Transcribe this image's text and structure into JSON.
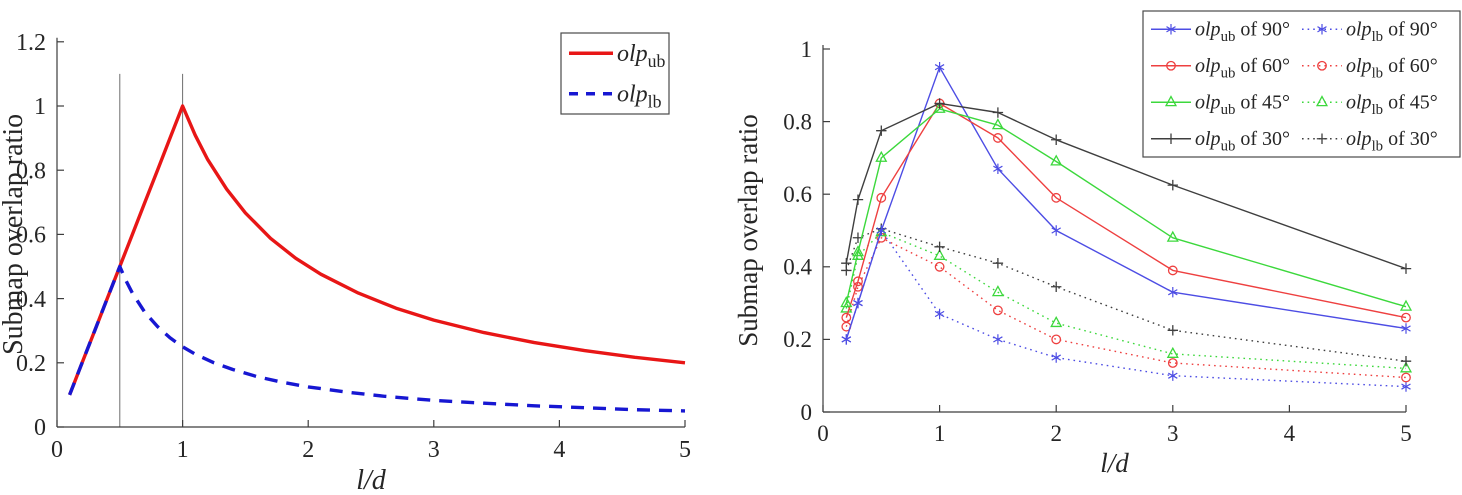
{
  "page": {
    "background": "#ffffff"
  },
  "chart_data": [
    {
      "id": "left",
      "type": "line",
      "title": "",
      "xlabel": "l/d",
      "ylabel": "Submap overlap ratio",
      "xlim": [
        0,
        5
      ],
      "ylim": [
        0,
        1.2
      ],
      "xticks": [
        "0",
        "1",
        "2",
        "3",
        "4",
        "5"
      ],
      "xtick_vals": [
        0,
        1,
        2,
        3,
        4,
        5
      ],
      "yticks": [
        "0",
        "0.2",
        "0.4",
        "0.6",
        "0.8",
        "1",
        "1.2"
      ],
      "ytick_vals": [
        0,
        0.2,
        0.4,
        0.6,
        0.8,
        1,
        1.2
      ],
      "grid": false,
      "legend_position": "top-right",
      "guide_lines": {
        "x": [
          0.5,
          1.0
        ],
        "y_range": [
          0,
          1.1
        ],
        "color": "#6e6e6e"
      },
      "series": [
        {
          "name": "olp_ub",
          "label": {
            "base": "olp",
            "sub": "ub",
            "suffix": ""
          },
          "color": "#e81616",
          "line": "solid",
          "marker": "none",
          "x": [
            0.1,
            0.2,
            0.3,
            0.4,
            0.5,
            0.6,
            0.7,
            0.8,
            0.9,
            1.0,
            1.1,
            1.2,
            1.35,
            1.5,
            1.7,
            1.9,
            2.1,
            2.4,
            2.7,
            3.0,
            3.4,
            3.8,
            4.2,
            4.6,
            5.0
          ],
          "y": [
            0.1,
            0.2,
            0.3,
            0.4,
            0.5,
            0.6,
            0.7,
            0.8,
            0.9,
            1.0,
            0.909,
            0.833,
            0.741,
            0.667,
            0.588,
            0.526,
            0.476,
            0.417,
            0.37,
            0.333,
            0.294,
            0.263,
            0.238,
            0.217,
            0.2
          ]
        },
        {
          "name": "olp_lb",
          "label": {
            "base": "olp",
            "sub": "lb",
            "suffix": ""
          },
          "color": "#1717d2",
          "line": "dashed",
          "marker": "none",
          "x": [
            0.1,
            0.2,
            0.3,
            0.4,
            0.5,
            0.55,
            0.6,
            0.7,
            0.8,
            0.9,
            1.0,
            1.1,
            1.25,
            1.4,
            1.6,
            1.8,
            2.0,
            2.3,
            2.6,
            3.0,
            3.4,
            3.8,
            4.2,
            4.6,
            5.0
          ],
          "y": [
            0.1,
            0.2,
            0.3,
            0.4,
            0.5,
            0.455,
            0.417,
            0.357,
            0.313,
            0.278,
            0.25,
            0.227,
            0.2,
            0.179,
            0.156,
            0.139,
            0.125,
            0.109,
            0.096,
            0.083,
            0.074,
            0.066,
            0.06,
            0.054,
            0.05
          ]
        }
      ]
    },
    {
      "id": "right",
      "type": "line",
      "title": "",
      "xlabel": "l/d",
      "ylabel": "Submap overlap ratio",
      "xlim": [
        0,
        5
      ],
      "ylim": [
        0,
        1.0
      ],
      "xticks": [
        "0",
        "1",
        "2",
        "3",
        "4",
        "5"
      ],
      "xtick_vals": [
        0,
        1,
        2,
        3,
        4,
        5
      ],
      "yticks": [
        "0",
        "0.2",
        "0.4",
        "0.6",
        "0.8",
        "1"
      ],
      "ytick_vals": [
        0,
        0.2,
        0.4,
        0.6,
        0.8,
        1
      ],
      "grid": false,
      "legend_position": "top-right",
      "x_shared": [
        0.2,
        0.3,
        0.5,
        1,
        1.5,
        2,
        3,
        5
      ],
      "series": [
        {
          "name": "olp_ub_90",
          "label": {
            "base": "olp",
            "sub": "ub",
            "suffix": " of 90°"
          },
          "color": "#4d4de4",
          "line": "solid",
          "marker": "asterisk",
          "x": [
            0.2,
            0.3,
            0.5,
            1,
            1.5,
            2,
            3,
            5
          ],
          "y": [
            0.2,
            0.3,
            0.5,
            0.95,
            0.67,
            0.5,
            0.33,
            0.23
          ]
        },
        {
          "name": "olp_lb_90",
          "label": {
            "base": "olp",
            "sub": "lb",
            "suffix": " of 90°"
          },
          "color": "#4d4de4",
          "line": "dotted",
          "marker": "asterisk",
          "x": [
            0.2,
            0.3,
            0.5,
            1,
            1.5,
            2,
            3,
            5
          ],
          "y": [
            0.2,
            0.3,
            0.5,
            0.27,
            0.2,
            0.15,
            0.1,
            0.07
          ]
        },
        {
          "name": "olp_ub_60",
          "label": {
            "base": "olp",
            "sub": "ub",
            "suffix": " of 60°"
          },
          "color": "#ee4040",
          "line": "solid",
          "marker": "circle",
          "x": [
            0.2,
            0.3,
            0.5,
            1,
            1.5,
            2,
            3,
            5
          ],
          "y": [
            0.26,
            0.36,
            0.59,
            0.85,
            0.755,
            0.59,
            0.39,
            0.26
          ]
        },
        {
          "name": "olp_lb_60",
          "label": {
            "base": "olp",
            "sub": "lb",
            "suffix": " of 60°"
          },
          "color": "#ee4040",
          "line": "dotted",
          "marker": "circle",
          "x": [
            0.2,
            0.3,
            0.5,
            1,
            1.5,
            2,
            3,
            5
          ],
          "y": [
            0.235,
            0.345,
            0.48,
            0.4,
            0.28,
            0.2,
            0.135,
            0.095
          ]
        },
        {
          "name": "olp_ub_45",
          "label": {
            "base": "olp",
            "sub": "ub",
            "suffix": " of 45°"
          },
          "color": "#3cd83c",
          "line": "solid",
          "marker": "triangle",
          "x": [
            0.2,
            0.3,
            0.5,
            1,
            1.5,
            2,
            3,
            5
          ],
          "y": [
            0.3,
            0.44,
            0.7,
            0.835,
            0.79,
            0.69,
            0.48,
            0.29
          ]
        },
        {
          "name": "olp_lb_45",
          "label": {
            "base": "olp",
            "sub": "lb",
            "suffix": " of 45°"
          },
          "color": "#3cd83c",
          "line": "dotted",
          "marker": "triangle",
          "x": [
            0.2,
            0.3,
            0.5,
            1,
            1.5,
            2,
            3,
            5
          ],
          "y": [
            0.285,
            0.43,
            0.495,
            0.43,
            0.33,
            0.245,
            0.16,
            0.12
          ]
        },
        {
          "name": "olp_ub_30",
          "label": {
            "base": "olp",
            "sub": "ub",
            "suffix": " of 30°"
          },
          "color": "#3f3f3f",
          "line": "solid",
          "marker": "plus",
          "x": [
            0.2,
            0.3,
            0.5,
            1,
            1.5,
            2,
            3,
            5
          ],
          "y": [
            0.41,
            0.585,
            0.775,
            0.85,
            0.825,
            0.75,
            0.625,
            0.395
          ]
        },
        {
          "name": "olp_lb_30",
          "label": {
            "base": "olp",
            "sub": "lb",
            "suffix": " of 30°"
          },
          "color": "#3f3f3f",
          "line": "dotted",
          "marker": "plus",
          "x": [
            0.2,
            0.3,
            0.5,
            1,
            1.5,
            2,
            3,
            5
          ],
          "y": [
            0.39,
            0.48,
            0.505,
            0.455,
            0.41,
            0.345,
            0.225,
            0.14
          ]
        }
      ]
    }
  ]
}
